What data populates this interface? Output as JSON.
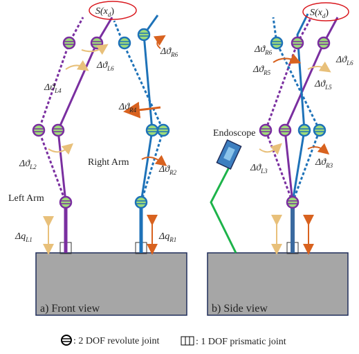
{
  "front": {
    "target": {
      "base": "S(x",
      "sub": "d",
      "close": ")"
    },
    "theta_L6": {
      "symbol": "Δϑ",
      "sub": "L6"
    },
    "theta_R6": {
      "symbol": "Δϑ",
      "sub": "R6"
    },
    "theta_L4": {
      "symbol": "Δϑ",
      "sub": "L4"
    },
    "theta_R4": {
      "symbol": "Δϑ",
      "sub": "R4"
    },
    "theta_L2": {
      "symbol": "Δϑ",
      "sub": "L2"
    },
    "theta_R2": {
      "symbol": "Δϑ",
      "sub": "R2"
    },
    "right_arm": "Right Arm",
    "left_arm": "Left Arm",
    "q_L1": {
      "symbol": "Δq",
      "sub": "L1"
    },
    "q_R1": {
      "symbol": "Δq",
      "sub": "R1"
    },
    "caption": "a) Front view"
  },
  "side": {
    "target": {
      "base": "S(x",
      "sub": "d",
      "close": ")"
    },
    "theta_R6": {
      "symbol": "Δϑ",
      "sub": "R6"
    },
    "theta_L6": {
      "symbol": "Δϑ",
      "sub": "L6"
    },
    "theta_R5": {
      "symbol": "Δϑ",
      "sub": "R5"
    },
    "theta_L5": {
      "symbol": "Δϑ",
      "sub": "L5"
    },
    "theta_L3": {
      "symbol": "Δϑ",
      "sub": "L3"
    },
    "theta_R3": {
      "symbol": "Δϑ",
      "sub": "R3"
    },
    "endoscope": "Endoscope",
    "caption": "b) Side view"
  },
  "legend": {
    "revolute": ": 2 DOF revolute joint",
    "prismatic": ": 1 DOF prismatic joint"
  }
}
